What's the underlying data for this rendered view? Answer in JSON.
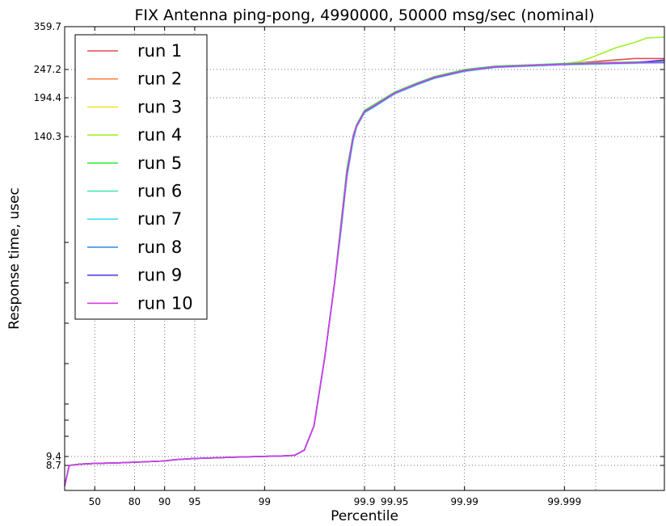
{
  "chart_data": {
    "type": "line",
    "title": "FIX Antenna ping-pong, 4990000, 50000 msg/sec (nominal)",
    "xlabel": "Percentile",
    "ylabel": "Response time, usec",
    "x_scale": "percentile-nines",
    "x_tick_labels": [
      "50",
      "80",
      "90",
      "95",
      "99",
      "99.9",
      "99.95",
      "99.99",
      "99.999"
    ],
    "x_ticks": [
      50,
      80,
      90,
      95,
      99,
      99.9,
      99.95,
      99.99,
      99.999
    ],
    "x_range": [
      0,
      99.9999
    ],
    "y_tick_labels": [
      "8.7",
      "9.4",
      "140.3",
      "194.4",
      "247.2",
      "359.7"
    ],
    "y_ticks": [
      8.7,
      9.4,
      140.3,
      194.4,
      247.2,
      359.7
    ],
    "grid": true,
    "legend_position": "top-left",
    "series_base": {
      "x": [
        0,
        10,
        30,
        50,
        70,
        80,
        90,
        92,
        95,
        97,
        98,
        99,
        99.3,
        99.5,
        99.6,
        99.68,
        99.75,
        99.8,
        99.83,
        99.85,
        99.87,
        99.88,
        99.9,
        99.92,
        99.95,
        99.97,
        99.98,
        99.99,
        99.995,
        99.998,
        99.999,
        99.9995,
        99.9998,
        99.9999
      ],
      "y": [
        6.5,
        8.7,
        8.8,
        8.85,
        8.9,
        8.95,
        9.05,
        9.15,
        9.25,
        9.3,
        9.35,
        9.45,
        9.6,
        9.9,
        12,
        22,
        50,
        80,
        105,
        125,
        140,
        155,
        175,
        183,
        203,
        220,
        232,
        245,
        254,
        258,
        261,
        263,
        265,
        266
      ]
    },
    "series": [
      {
        "name": "run 1",
        "color": "#e8485c",
        "y_offset": 0,
        "tail": [
          [
            99.9995,
            268
          ],
          [
            99.9998,
            276
          ],
          [
            99.9999,
            276
          ]
        ]
      },
      {
        "name": "run 2",
        "color": "#f5834a",
        "y_offset": 0.8,
        "tail": []
      },
      {
        "name": "run 3",
        "color": "#f0e530",
        "y_offset": -0.6,
        "tail": []
      },
      {
        "name": "run 4",
        "color": "#9ef028",
        "y_offset": 1.2,
        "tail": [
          [
            99.9993,
            268
          ],
          [
            99.9995,
            282
          ],
          [
            99.9996,
            292
          ],
          [
            99.9997,
            305
          ],
          [
            99.9998,
            318
          ],
          [
            99.99985,
            330
          ],
          [
            99.9999,
            332
          ]
        ]
      },
      {
        "name": "run 5",
        "color": "#3dea3d",
        "y_offset": 2.0,
        "tail": []
      },
      {
        "name": "run 6",
        "color": "#3de8a8",
        "y_offset": -1.0,
        "tail": []
      },
      {
        "name": "run 7",
        "color": "#45dfee",
        "y_offset": -1.6,
        "tail": []
      },
      {
        "name": "run 8",
        "color": "#3f8fe9",
        "y_offset": 0.4,
        "tail": []
      },
      {
        "name": "run 9",
        "color": "#4a3bdf",
        "y_offset": -0.2,
        "tail": [
          [
            99.9999,
            272
          ]
        ]
      },
      {
        "name": "run 10",
        "color": "#d83be8",
        "y_offset": 0.2,
        "tail": []
      }
    ]
  }
}
